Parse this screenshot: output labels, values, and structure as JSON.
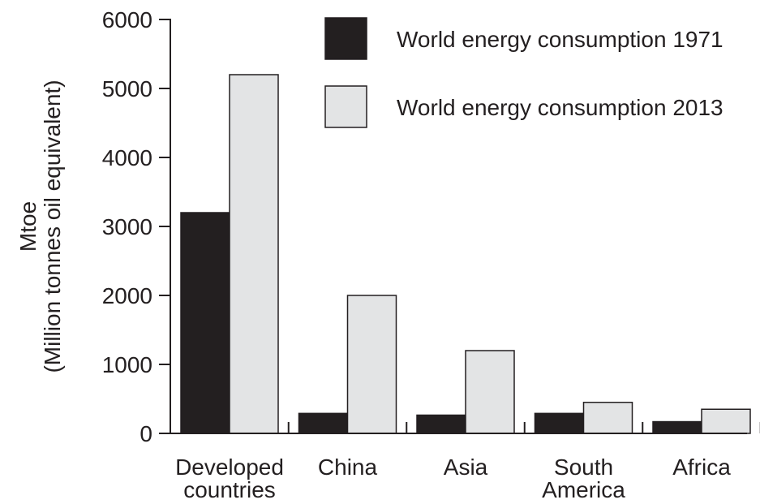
{
  "chart_data": {
    "type": "bar",
    "categories": [
      [
        "Developed",
        "countries"
      ],
      [
        "China"
      ],
      [
        "Asia"
      ],
      [
        "South",
        "America"
      ],
      [
        "Africa"
      ]
    ],
    "series": [
      {
        "name": "World energy consumption 1971",
        "color": "#231f20",
        "values": [
          3200,
          290,
          265,
          290,
          170
        ]
      },
      {
        "name": "World energy consumption 2013",
        "color": "#e3e4e5",
        "values": [
          5200,
          2000,
          1200,
          450,
          350
        ]
      }
    ],
    "ylabel": [
      "Mtoe",
      "(Million tonnes oil equivalent)"
    ],
    "xlabel": "",
    "title": "",
    "ylim": [
      0,
      6000
    ],
    "yticks": [
      0,
      1000,
      2000,
      3000,
      4000,
      5000,
      6000
    ],
    "grid": false,
    "legend_position": "top-right"
  }
}
